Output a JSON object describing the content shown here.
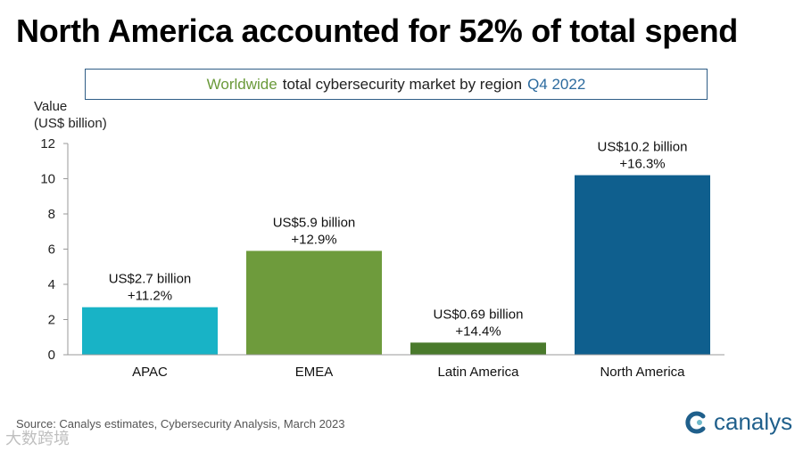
{
  "headline": "North America accounted for 52% of total spend",
  "subtitle": {
    "part1": "Worldwide",
    "part2": "total cybersecurity market by region",
    "part3": "Q4 2022"
  },
  "colors": {
    "apac": "#18b3c6",
    "emea": "#6e9b3c",
    "latin_america": "#4a7a2c",
    "north_america": "#0f5f8e",
    "axis": "#999999"
  },
  "chart_data": {
    "type": "bar",
    "title": "Worldwide total cybersecurity market by region Q4 2022",
    "ylabel_line1": "Value",
    "ylabel_line2": "(US$ billion)",
    "xlabel": "",
    "ylim": [
      0,
      12
    ],
    "yticks": [
      0,
      2,
      4,
      6,
      8,
      10,
      12
    ],
    "categories": [
      "APAC",
      "EMEA",
      "Latin America",
      "North America"
    ],
    "values": [
      2.7,
      5.9,
      0.69,
      10.2
    ],
    "labels_value": [
      "US$2.7 billion",
      "US$5.9 billion",
      "US$0.69 billion",
      "US$10.2 billion"
    ],
    "labels_growth": [
      "+11.2%",
      "+12.9%",
      "+14.4%",
      "+16.3%"
    ]
  },
  "source": "Source: Canalys estimates, Cybersecurity Analysis, March 2023",
  "logo_text": "canalys",
  "watermark": "大数跨境"
}
